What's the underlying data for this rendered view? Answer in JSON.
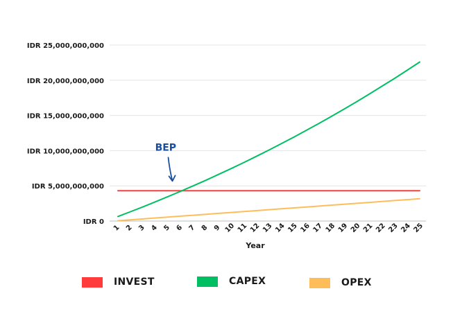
{
  "chart_data": {
    "type": "line",
    "xlabel": "Year",
    "ylabel": "",
    "ylim": [
      0,
      25000000000
    ],
    "y_ticks": [
      0,
      5000000000,
      10000000000,
      15000000000,
      20000000000,
      25000000000
    ],
    "y_tick_labels": [
      "IDR 0",
      "IDR 5,000,000,000",
      "IDR 10,000,000,000",
      "IDR 15,000,000,000",
      "IDR 20,000,000,000",
      "IDR 25,000,000,000"
    ],
    "categories": [
      "1",
      "2",
      "3",
      "4",
      "5",
      "6",
      "7",
      "8",
      "9",
      "10",
      "11",
      "12",
      "13",
      "14",
      "15",
      "16",
      "17",
      "18",
      "19",
      "20",
      "21",
      "22",
      "23",
      "24",
      "25"
    ],
    "grid": true,
    "legend_position": "bottom",
    "series": [
      {
        "name": "INVEST",
        "color": "#ff3b3b",
        "values": [
          4300000000,
          4300000000,
          4300000000,
          4300000000,
          4300000000,
          4300000000,
          4300000000,
          4300000000,
          4300000000,
          4300000000,
          4300000000,
          4300000000,
          4300000000,
          4300000000,
          4300000000,
          4300000000,
          4300000000,
          4300000000,
          4300000000,
          4300000000,
          4300000000,
          4300000000,
          4300000000,
          4300000000,
          4300000000
        ]
      },
      {
        "name": "CAPEX",
        "color": "#00bf63",
        "values": [
          650000000,
          1330000000,
          2030000000,
          2750000000,
          3480000000,
          4240000000,
          5010000000,
          5800000000,
          6620000000,
          7450000000,
          8310000000,
          9180000000,
          10080000000,
          11000000000,
          11940000000,
          12900000000,
          13880000000,
          14890000000,
          15920000000,
          16970000000,
          18050000000,
          19150000000,
          20270000000,
          21420000000,
          22590000000
        ]
      },
      {
        "name": "OPEX",
        "color": "#ffbd59",
        "values": [
          50000000,
          180000000,
          310000000,
          440000000,
          570000000,
          700000000,
          830000000,
          960000000,
          1090000000,
          1220000000,
          1350000000,
          1480000000,
          1610000000,
          1740000000,
          1870000000,
          2000000000,
          2130000000,
          2260000000,
          2390000000,
          2520000000,
          2650000000,
          2780000000,
          2910000000,
          3040000000,
          3170000000
        ]
      }
    ],
    "annotation": {
      "text": "BEP",
      "color": "#1a4fa0",
      "x": 5.5,
      "y": 4300000000
    }
  }
}
